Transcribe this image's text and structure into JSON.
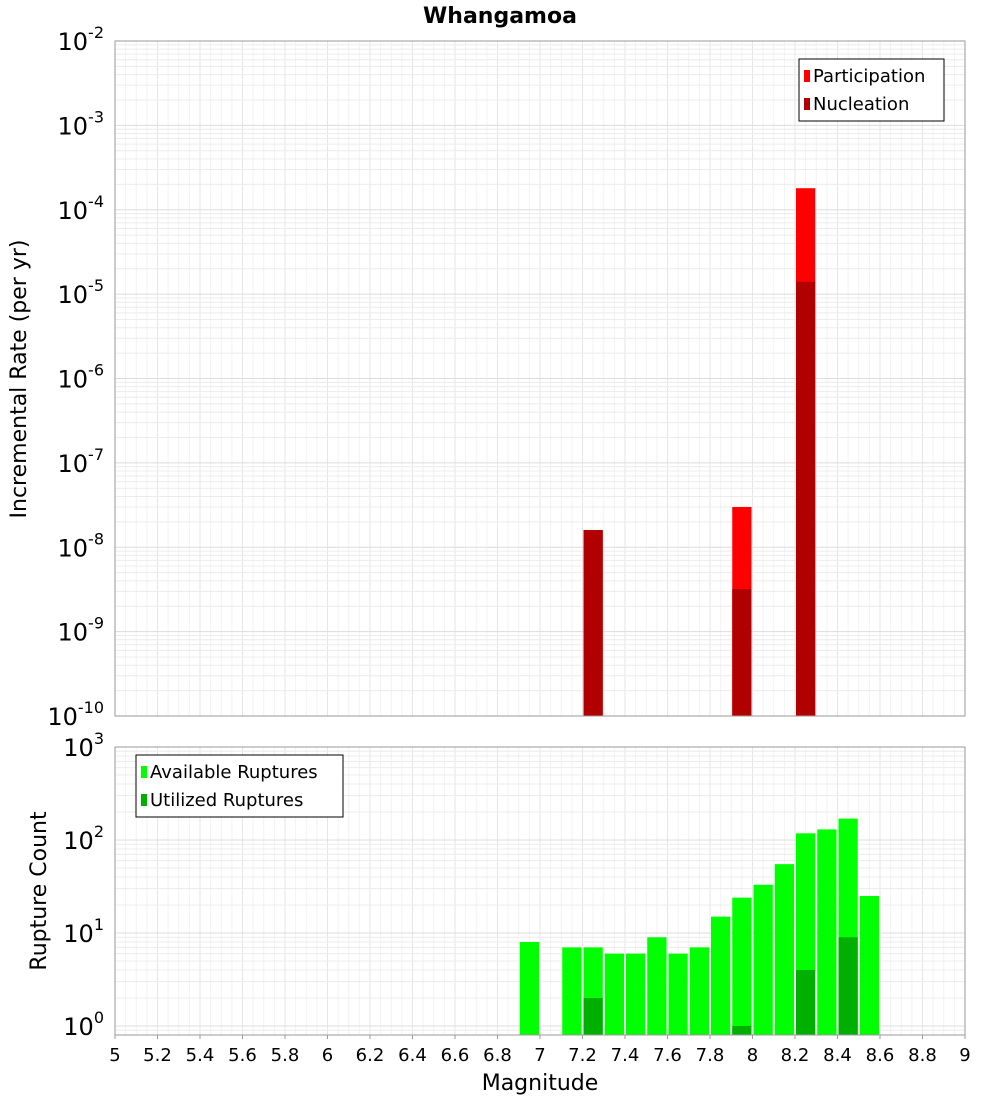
{
  "chart_data": [
    {
      "type": "bar",
      "title": "Whangamoa",
      "ylabel": "Incremental Rate (per yr)",
      "xlabel": "",
      "yscale": "log",
      "ylim": [
        1e-10,
        0.01
      ],
      "xlim": [
        5,
        9
      ],
      "ytick_exponents": [
        "-10",
        "-9",
        "-8",
        "-7",
        "-6",
        "-5",
        "-4",
        "-3",
        "-2"
      ],
      "ytick_base": "10",
      "legend": {
        "placement": "top-right",
        "entries": [
          "Participation",
          "Nucleation"
        ]
      },
      "grid": true,
      "bar_width": 0.1,
      "series": [
        {
          "name": "Participation",
          "color": "#ff0000",
          "x": [
            7.25,
            7.95,
            8.25
          ],
          "values": [
            1.6e-08,
            3e-08,
            0.00018
          ]
        },
        {
          "name": "Nucleation",
          "color": "#b00000",
          "x": [
            7.25,
            7.95,
            8.25
          ],
          "values": [
            1.6e-08,
            3.2e-09,
            1.4e-05
          ]
        }
      ]
    },
    {
      "type": "bar",
      "ylabel": "Rupture Count",
      "xlabel": "Magnitude",
      "yscale": "log",
      "ylim": [
        0.8,
        1000
      ],
      "xlim": [
        5,
        9
      ],
      "ytick_exponents": [
        "0",
        "1",
        "2",
        "3"
      ],
      "ytick_base": "10",
      "x_ticks": [
        "5",
        "5.2",
        "5.4",
        "5.6",
        "5.8",
        "6",
        "6.2",
        "6.4",
        "6.6",
        "6.8",
        "7",
        "7.2",
        "7.4",
        "7.6",
        "7.8",
        "8",
        "8.2",
        "8.4",
        "8.6",
        "8.8",
        "9"
      ],
      "legend": {
        "placement": "top-left",
        "entries": [
          "Available Ruptures",
          "Utilized Ruptures"
        ]
      },
      "grid": true,
      "bar_width": 0.1,
      "series": [
        {
          "name": "Available Ruptures",
          "color": "#00ff00",
          "x": [
            6.95,
            7.15,
            7.25,
            7.35,
            7.45,
            7.55,
            7.65,
            7.75,
            7.85,
            7.95,
            8.05,
            8.15,
            8.25,
            8.35,
            8.45,
            8.55
          ],
          "values": [
            8,
            7,
            7,
            6,
            6,
            9,
            6,
            7,
            15,
            24,
            33,
            55,
            118,
            130,
            170,
            25
          ]
        },
        {
          "name": "Utilized Ruptures",
          "color": "#00b000",
          "x": [
            7.25,
            7.95,
            8.25,
            8.45
          ],
          "values": [
            2,
            1,
            4,
            9
          ]
        }
      ]
    }
  ]
}
